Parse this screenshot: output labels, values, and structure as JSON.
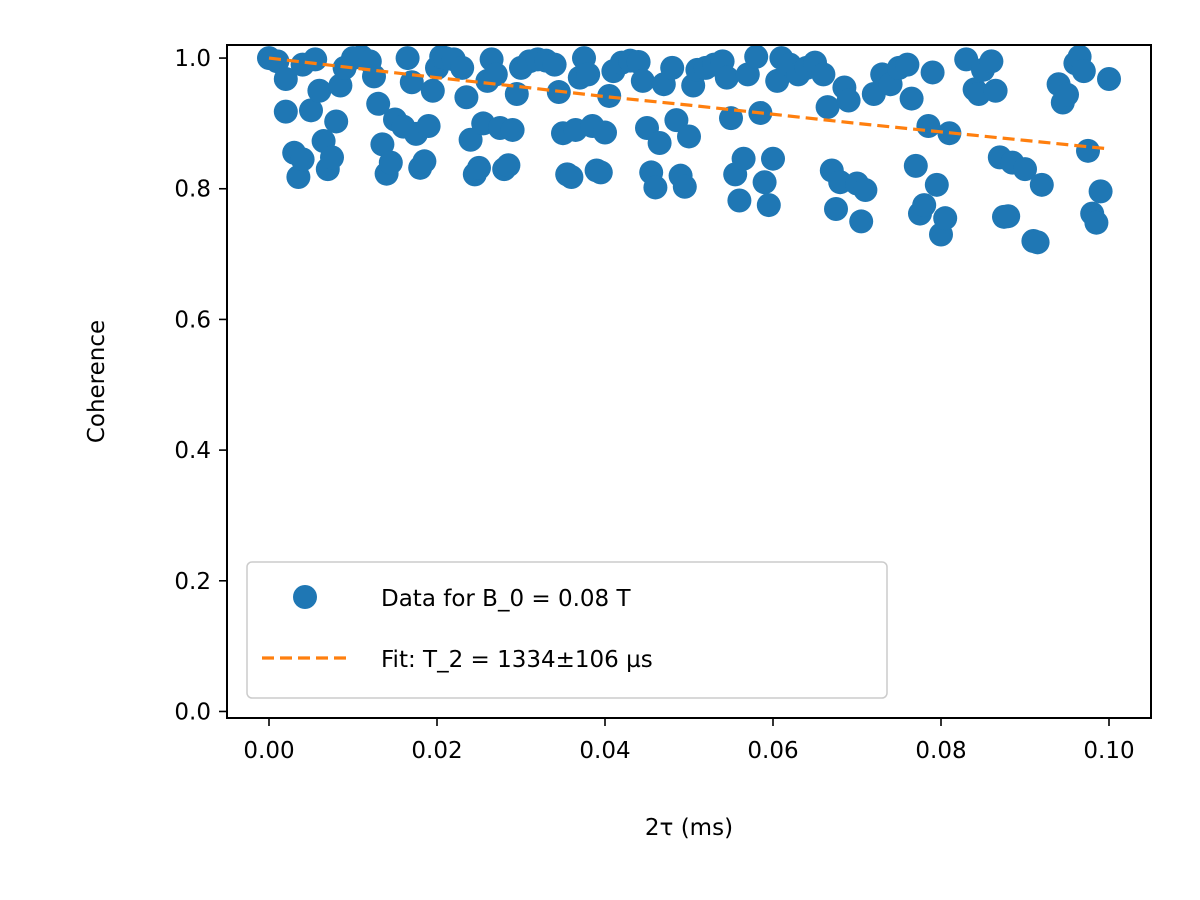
{
  "chart_data": {
    "type": "scatter",
    "xlabel": "2τ (ms)",
    "ylabel": "Coherence",
    "xlim": [
      -0.005,
      0.105
    ],
    "ylim": [
      -0.01,
      1.02
    ],
    "xticks": [
      "0.00",
      "0.02",
      "0.04",
      "0.06",
      "0.08",
      "0.10"
    ],
    "xtick_values": [
      0.0,
      0.02,
      0.04,
      0.06,
      0.08,
      0.1
    ],
    "yticks": [
      "0.0",
      "0.2",
      "0.4",
      "0.6",
      "0.8",
      "1.0"
    ],
    "ytick_values": [
      0.0,
      0.2,
      0.4,
      0.6,
      0.8,
      1.0
    ],
    "grid": false,
    "legend_position": "lower-left",
    "series": [
      {
        "name": "Data for B_0 = 0.08 T",
        "kind": "scatter",
        "color": "#1f77b4",
        "points": [
          [
            0.0,
            1.0
          ],
          [
            0.001,
            0.995
          ],
          [
            0.002,
            0.968
          ],
          [
            0.002,
            0.918
          ],
          [
            0.003,
            0.855
          ],
          [
            0.0035,
            0.818
          ],
          [
            0.004,
            0.845
          ],
          [
            0.004,
            0.99
          ],
          [
            0.005,
            0.92
          ],
          [
            0.0055,
            0.998
          ],
          [
            0.006,
            0.95
          ],
          [
            0.0065,
            0.873
          ],
          [
            0.007,
            0.83
          ],
          [
            0.0075,
            0.848
          ],
          [
            0.008,
            0.903
          ],
          [
            0.0085,
            0.958
          ],
          [
            0.009,
            0.985
          ],
          [
            0.01,
            1.0
          ],
          [
            0.011,
            1.002
          ],
          [
            0.012,
            0.995
          ],
          [
            0.0125,
            0.972
          ],
          [
            0.013,
            0.93
          ],
          [
            0.0135,
            0.868
          ],
          [
            0.014,
            0.823
          ],
          [
            0.0145,
            0.84
          ],
          [
            0.015,
            0.906
          ],
          [
            0.016,
            0.895
          ],
          [
            0.0165,
            1.0
          ],
          [
            0.017,
            0.963
          ],
          [
            0.0175,
            0.884
          ],
          [
            0.018,
            0.832
          ],
          [
            0.0185,
            0.842
          ],
          [
            0.019,
            0.896
          ],
          [
            0.0195,
            0.95
          ],
          [
            0.02,
            0.985
          ],
          [
            0.0205,
            1.002
          ],
          [
            0.021,
            1.0
          ],
          [
            0.022,
            0.998
          ],
          [
            0.023,
            0.985
          ],
          [
            0.0235,
            0.94
          ],
          [
            0.024,
            0.875
          ],
          [
            0.0245,
            0.822
          ],
          [
            0.025,
            0.832
          ],
          [
            0.0255,
            0.9
          ],
          [
            0.026,
            0.965
          ],
          [
            0.0265,
            0.998
          ],
          [
            0.027,
            0.975
          ],
          [
            0.0275,
            0.893
          ],
          [
            0.028,
            0.83
          ],
          [
            0.0285,
            0.836
          ],
          [
            0.029,
            0.89
          ],
          [
            0.0295,
            0.945
          ],
          [
            0.03,
            0.985
          ],
          [
            0.031,
            0.995
          ],
          [
            0.032,
            0.998
          ],
          [
            0.033,
            0.996
          ],
          [
            0.034,
            0.99
          ],
          [
            0.0345,
            0.948
          ],
          [
            0.035,
            0.885
          ],
          [
            0.0355,
            0.822
          ],
          [
            0.036,
            0.818
          ],
          [
            0.0365,
            0.89
          ],
          [
            0.037,
            0.97
          ],
          [
            0.0375,
            1.0
          ],
          [
            0.038,
            0.975
          ],
          [
            0.0385,
            0.896
          ],
          [
            0.039,
            0.828
          ],
          [
            0.0395,
            0.825
          ],
          [
            0.04,
            0.886
          ],
          [
            0.0405,
            0.942
          ],
          [
            0.041,
            0.98
          ],
          [
            0.042,
            0.993
          ],
          [
            0.043,
            0.996
          ],
          [
            0.044,
            0.994
          ],
          [
            0.0445,
            0.965
          ],
          [
            0.045,
            0.893
          ],
          [
            0.0455,
            0.825
          ],
          [
            0.046,
            0.802
          ],
          [
            0.0465,
            0.87
          ],
          [
            0.047,
            0.96
          ],
          [
            0.048,
            0.985
          ],
          [
            0.0485,
            0.905
          ],
          [
            0.049,
            0.82
          ],
          [
            0.0495,
            0.803
          ],
          [
            0.05,
            0.88
          ],
          [
            0.0505,
            0.958
          ],
          [
            0.051,
            0.982
          ],
          [
            0.052,
            0.985
          ],
          [
            0.053,
            0.99
          ],
          [
            0.054,
            0.995
          ],
          [
            0.0545,
            0.97
          ],
          [
            0.055,
            0.908
          ],
          [
            0.0555,
            0.822
          ],
          [
            0.056,
            0.782
          ],
          [
            0.0565,
            0.846
          ],
          [
            0.057,
            0.975
          ],
          [
            0.058,
            1.002
          ],
          [
            0.0585,
            0.916
          ],
          [
            0.059,
            0.81
          ],
          [
            0.0595,
            0.775
          ],
          [
            0.06,
            0.846
          ],
          [
            0.0605,
            0.965
          ],
          [
            0.061,
            1.0
          ],
          [
            0.062,
            0.99
          ],
          [
            0.063,
            0.975
          ],
          [
            0.064,
            0.985
          ],
          [
            0.065,
            0.993
          ],
          [
            0.066,
            0.975
          ],
          [
            0.0665,
            0.925
          ],
          [
            0.067,
            0.828
          ],
          [
            0.0675,
            0.769
          ],
          [
            0.068,
            0.81
          ],
          [
            0.0685,
            0.955
          ],
          [
            0.069,
            0.935
          ],
          [
            0.07,
            0.808
          ],
          [
            0.0705,
            0.75
          ],
          [
            0.071,
            0.798
          ],
          [
            0.072,
            0.945
          ],
          [
            0.073,
            0.975
          ],
          [
            0.074,
            0.96
          ],
          [
            0.075,
            0.985
          ],
          [
            0.076,
            0.99
          ],
          [
            0.0765,
            0.938
          ],
          [
            0.077,
            0.835
          ],
          [
            0.0775,
            0.762
          ],
          [
            0.078,
            0.775
          ],
          [
            0.0785,
            0.896
          ],
          [
            0.079,
            0.978
          ],
          [
            0.0795,
            0.806
          ],
          [
            0.08,
            0.73
          ],
          [
            0.0805,
            0.755
          ],
          [
            0.081,
            0.885
          ],
          [
            0.083,
            0.998
          ],
          [
            0.084,
            0.952
          ],
          [
            0.0845,
            0.945
          ],
          [
            0.085,
            0.982
          ],
          [
            0.086,
            0.995
          ],
          [
            0.0865,
            0.95
          ],
          [
            0.087,
            0.848
          ],
          [
            0.0875,
            0.757
          ],
          [
            0.088,
            0.758
          ],
          [
            0.0885,
            0.84
          ],
          [
            0.09,
            0.83
          ],
          [
            0.091,
            0.72
          ],
          [
            0.0915,
            0.718
          ],
          [
            0.092,
            0.806
          ],
          [
            0.094,
            0.96
          ],
          [
            0.0945,
            0.932
          ],
          [
            0.095,
            0.944
          ],
          [
            0.096,
            0.992
          ],
          [
            0.0965,
            1.002
          ],
          [
            0.097,
            0.98
          ],
          [
            0.0975,
            0.858
          ],
          [
            0.098,
            0.762
          ],
          [
            0.0985,
            0.748
          ],
          [
            0.099,
            0.796
          ],
          [
            0.1,
            0.968
          ]
        ]
      },
      {
        "name": "Fit: T_2 = 1334±106 µs",
        "kind": "line",
        "style": "dashed",
        "color": "#ff7f0e",
        "x": [
          0.0,
          0.01,
          0.02,
          0.03,
          0.04,
          0.05,
          0.06,
          0.07,
          0.08,
          0.09,
          0.1
        ],
        "y": [
          1.0,
          0.985,
          0.97,
          0.956,
          0.941,
          0.928,
          0.914,
          0.9,
          0.887,
          0.874,
          0.861
        ]
      }
    ]
  }
}
